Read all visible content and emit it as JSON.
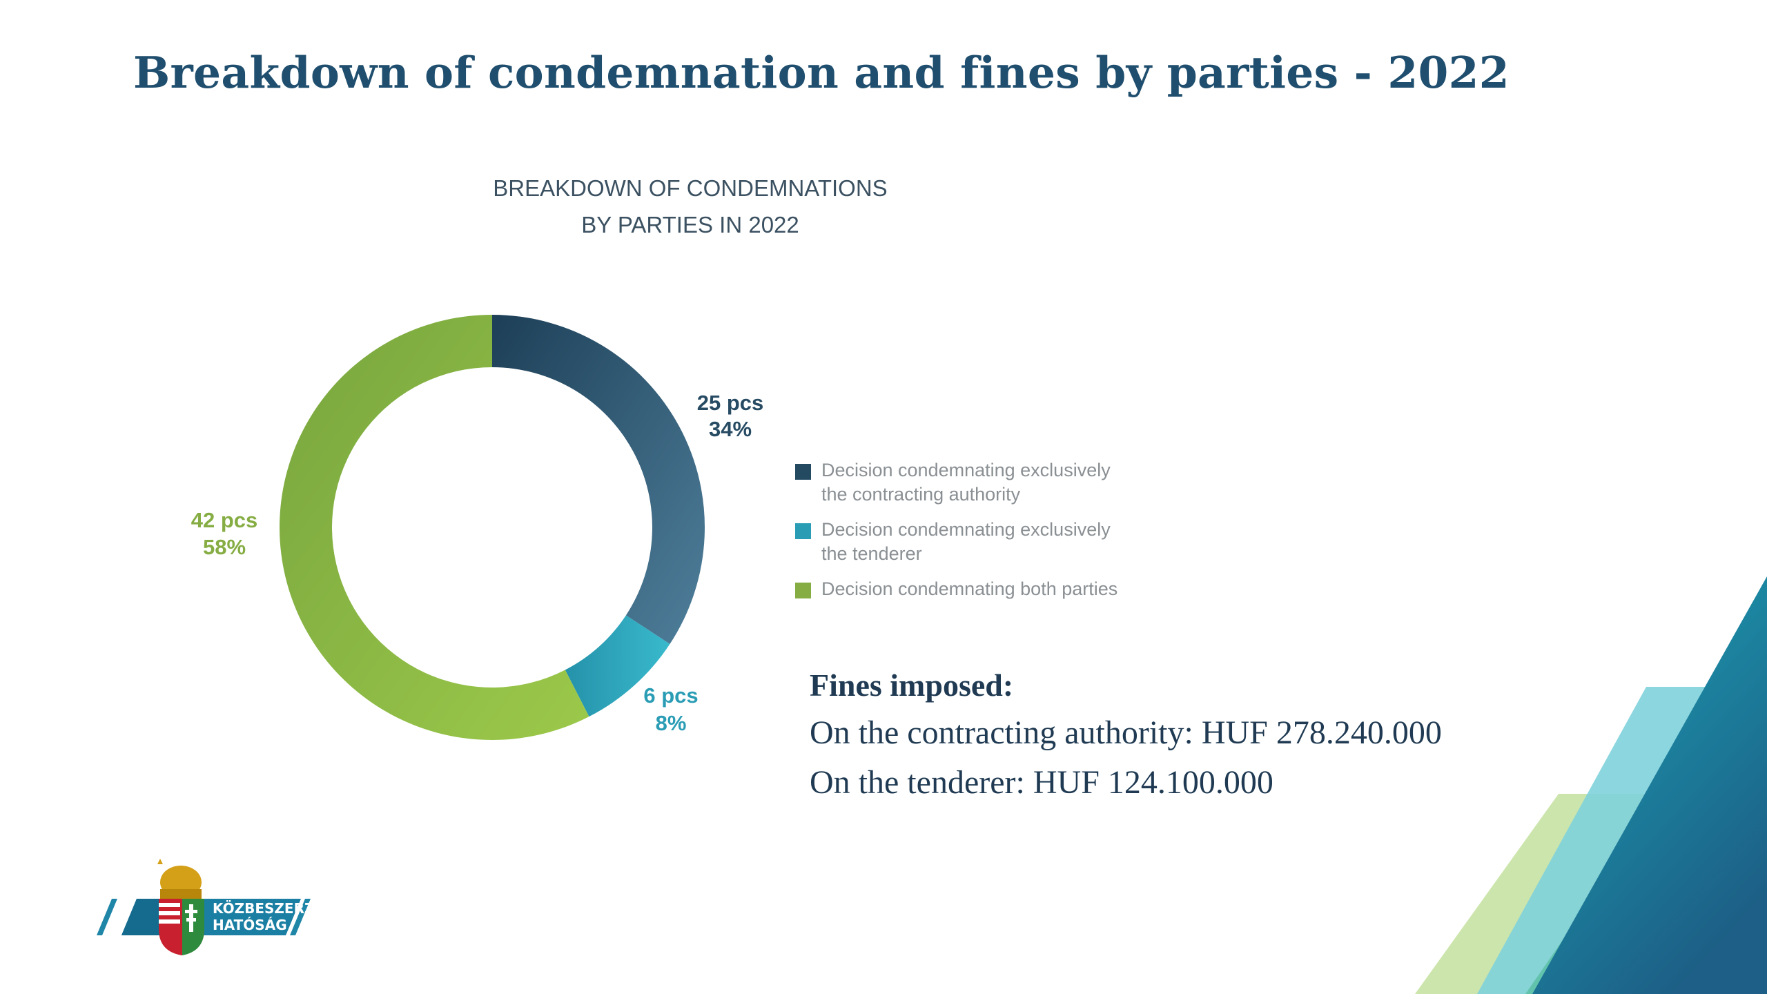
{
  "page": {
    "title": "Breakdown of condemnation and fines by parties - 2022"
  },
  "chart_data": {
    "type": "pie",
    "variant": "donut",
    "title_lines": [
      "BREAKDOWN OF CONDEMNATIONS",
      "BY PARTIES IN 2022"
    ],
    "categories": [
      "Decision condemnating exclusively the contracting authority",
      "Decision condemnating exclusively the tenderer",
      "Decision condemnating both parties"
    ],
    "values": [
      25,
      6,
      42
    ],
    "percent_labels": [
      "34%",
      "8%",
      "58%"
    ],
    "count_labels": [
      "25 pcs",
      "6 pcs",
      "42 pcs"
    ],
    "colors": [
      "#244a62",
      "#2a9db5",
      "#86ad43"
    ],
    "legend_placement": "right",
    "legend": [
      {
        "lines": [
          "Decision condemnating exclusively",
          "the contracting authority"
        ],
        "color": "#244a62"
      },
      {
        "lines": [
          "Decision condemnating exclusively",
          "the tenderer"
        ],
        "color": "#2a9db5"
      },
      {
        "lines": [
          "Decision condemnating both parties"
        ],
        "color": "#86ad43"
      }
    ]
  },
  "fines": {
    "heading": "Fines imposed:",
    "lines": [
      "On the contracting authority: HUF 278.240.000",
      "On the tenderer: HUF 124.100.000"
    ]
  },
  "logo": {
    "name_lines": [
      "KÖZBESZERZÉSI",
      "HATÓSÁG"
    ]
  }
}
